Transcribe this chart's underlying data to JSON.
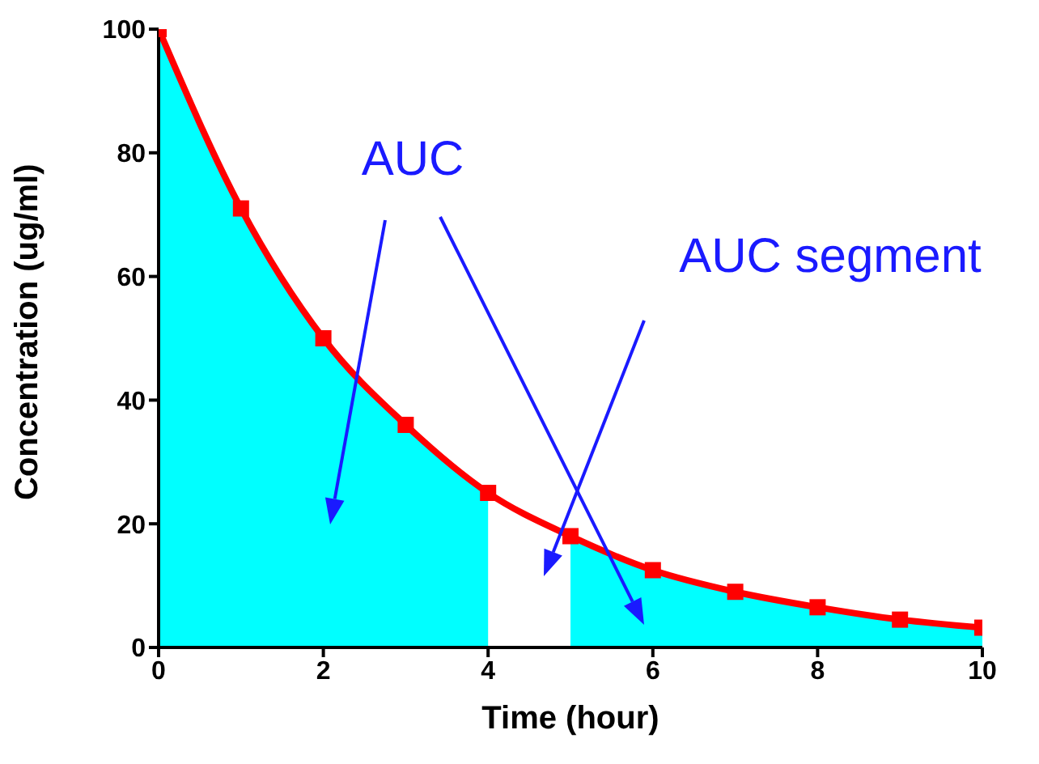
{
  "chart_data": {
    "type": "line",
    "xlabel": "Time (hour)",
    "ylabel": "Concentration (ug/ml)",
    "xlim": [
      0,
      10
    ],
    "xticks": [
      0,
      2,
      4,
      6,
      8,
      10
    ],
    "ylim": [
      0,
      100
    ],
    "yticks": [
      0,
      20,
      40,
      60,
      80,
      100
    ],
    "series": [
      {
        "type": "area",
        "color": "#00ffff",
        "marker": "none",
        "x": [
          0,
          1,
          2,
          3,
          4
        ],
        "values": [
          100,
          71,
          50,
          36,
          25
        ]
      },
      {
        "type": "area",
        "color": "#00ffff",
        "marker": "none",
        "x": [
          5,
          6,
          7,
          8,
          9,
          10
        ],
        "values": [
          18,
          12.5,
          9,
          6.5,
          4.5,
          3.2
        ]
      },
      {
        "color": "#ff0000",
        "x": [
          0,
          1,
          2,
          3,
          4,
          5,
          6,
          7,
          8,
          9,
          10
        ],
        "values": [
          100,
          71,
          50,
          36,
          25,
          18,
          12.5,
          9,
          6.5,
          4.5,
          3.2
        ]
      }
    ],
    "marker": "square",
    "grid": false,
    "legend": false,
    "annotations": [
      "AUC",
      "AUC segment"
    ]
  }
}
